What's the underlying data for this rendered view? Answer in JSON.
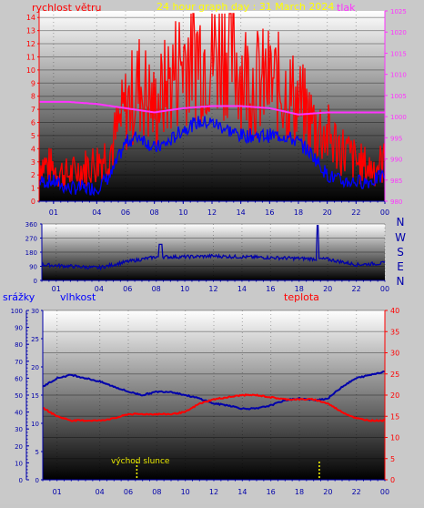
{
  "chart_data": [
    {
      "type": "line",
      "title": "24 hour graph day : 31 March 2024",
      "left_axis_label": "rychlost větru",
      "right_axis_label": "tlak",
      "x_ticks": [
        "01",
        "04",
        "06",
        "08",
        "10",
        "12",
        "14",
        "16",
        "18",
        "20",
        "22",
        "00"
      ],
      "y_left_ticks": [
        "0",
        "1",
        "2",
        "3",
        "4",
        "5",
        "6",
        "7",
        "8",
        "9",
        "10",
        "11",
        "12",
        "13",
        "14"
      ],
      "y_right_ticks": [
        "980",
        "985",
        "990",
        "995",
        "1000",
        "1005",
        "1010",
        "1015",
        "1020",
        "1025"
      ],
      "y_left_range": [
        0,
        14.5
      ],
      "y_right_range": [
        980,
        1025
      ],
      "grid": true,
      "series": [
        {
          "color": "#ff0000",
          "role": "wind gust",
          "x": [
            0,
            1,
            2,
            3,
            4,
            5,
            6,
            7,
            8,
            9,
            10,
            11,
            12,
            13,
            14,
            15,
            16,
            17,
            18,
            19,
            20,
            21,
            22,
            23,
            24
          ],
          "y": [
            3,
            2.5,
            2,
            2.5,
            3,
            4,
            7,
            9,
            7,
            9,
            11,
            11.5,
            11,
            12,
            10,
            9,
            9,
            8.5,
            7.5,
            6,
            5,
            4,
            3,
            2.5,
            3
          ]
        },
        {
          "color": "#0000ff",
          "role": "wind speed",
          "x": [
            0,
            1,
            2,
            3,
            4,
            5,
            6,
            7,
            8,
            9,
            10,
            11,
            12,
            13,
            14,
            15,
            16,
            17,
            18,
            19,
            20,
            21,
            22,
            23,
            24
          ],
          "y": [
            1.5,
            1.5,
            1,
            1,
            1,
            2,
            4.5,
            5,
            4,
            4.5,
            5.5,
            6,
            6,
            5.5,
            5,
            5,
            5,
            5,
            4.5,
            3.5,
            2,
            1.5,
            1.5,
            1.5,
            2
          ]
        },
        {
          "color": "#ff33ff",
          "role": "pressure",
          "x": [
            0,
            2,
            4,
            6,
            8,
            10,
            12,
            14,
            16,
            18,
            20,
            22,
            24
          ],
          "y": [
            1003.5,
            1003.5,
            1003,
            1002,
            1001,
            1002,
            1002.5,
            1002.5,
            1002,
            1000.5,
            1001,
            1001,
            1001
          ]
        }
      ]
    },
    {
      "type": "line",
      "right_axis_label": "N W S E N",
      "y_ticks": [
        "0",
        "90",
        "180",
        "270",
        "360"
      ],
      "y_range": [
        0,
        360
      ],
      "x_ticks": [
        "01",
        "04",
        "06",
        "08",
        "10",
        "12",
        "14",
        "16",
        "18",
        "20",
        "22",
        "00"
      ],
      "grid": true,
      "series": [
        {
          "color": "#0000aa",
          "role": "wind direction",
          "x": [
            0,
            2,
            4,
            6,
            8,
            10,
            12,
            14,
            16,
            18,
            20,
            22,
            24
          ],
          "y": [
            100,
            90,
            80,
            120,
            150,
            150,
            155,
            150,
            145,
            140,
            135,
            100,
            110
          ]
        }
      ]
    },
    {
      "type": "line",
      "left_axis_label_outer": "srážky",
      "left_axis_label_inner": "vlhkost",
      "right_axis_label": "teplota",
      "annotation": "východ slunce",
      "y_left_outer_ticks": [
        "0",
        "10",
        "20",
        "30",
        "40",
        "50",
        "60",
        "70",
        "80",
        "90",
        "100"
      ],
      "y_left_inner_ticks": [
        "0",
        "5",
        "10",
        "15",
        "20",
        "25",
        "30"
      ],
      "y_right_ticks": [
        "0",
        "5",
        "10",
        "15",
        "20",
        "25",
        "30",
        "35",
        "40"
      ],
      "y_left_outer_range": [
        0,
        100
      ],
      "y_right_range": [
        0,
        40
      ],
      "x_ticks": [
        "01",
        "04",
        "06",
        "08",
        "10",
        "12",
        "14",
        "16",
        "18",
        "20",
        "22",
        "00"
      ],
      "grid": true,
      "markers": [
        {
          "color": "#ffff00",
          "x": 6.6
        },
        {
          "color": "#ffff00",
          "x": 19.4
        }
      ],
      "series": [
        {
          "color": "#0000aa",
          "role": "humidity",
          "x": [
            0,
            1,
            2,
            3,
            4,
            5,
            6,
            7,
            8,
            9,
            10,
            11,
            12,
            13,
            14,
            15,
            16,
            17,
            18,
            19,
            20,
            21,
            22,
            23,
            24
          ],
          "y": [
            55,
            60,
            62,
            60,
            58,
            55,
            52,
            50,
            52,
            52,
            50,
            48,
            45,
            44,
            42,
            42,
            44,
            47,
            48,
            47,
            48,
            55,
            60,
            62,
            64
          ]
        },
        {
          "color": "#ff0000",
          "role": "temperature",
          "x": [
            0,
            1,
            2,
            3,
            4,
            5,
            6,
            7,
            8,
            9,
            10,
            11,
            12,
            13,
            14,
            15,
            16,
            17,
            18,
            19,
            20,
            21,
            22,
            23,
            24
          ],
          "y": [
            17,
            15,
            14,
            14,
            14,
            14.5,
            15.5,
            15.5,
            15.5,
            15.5,
            16,
            18,
            19,
            19.5,
            20,
            20,
            19.5,
            19,
            19,
            19,
            18,
            16,
            14.5,
            14,
            14
          ]
        }
      ]
    }
  ]
}
